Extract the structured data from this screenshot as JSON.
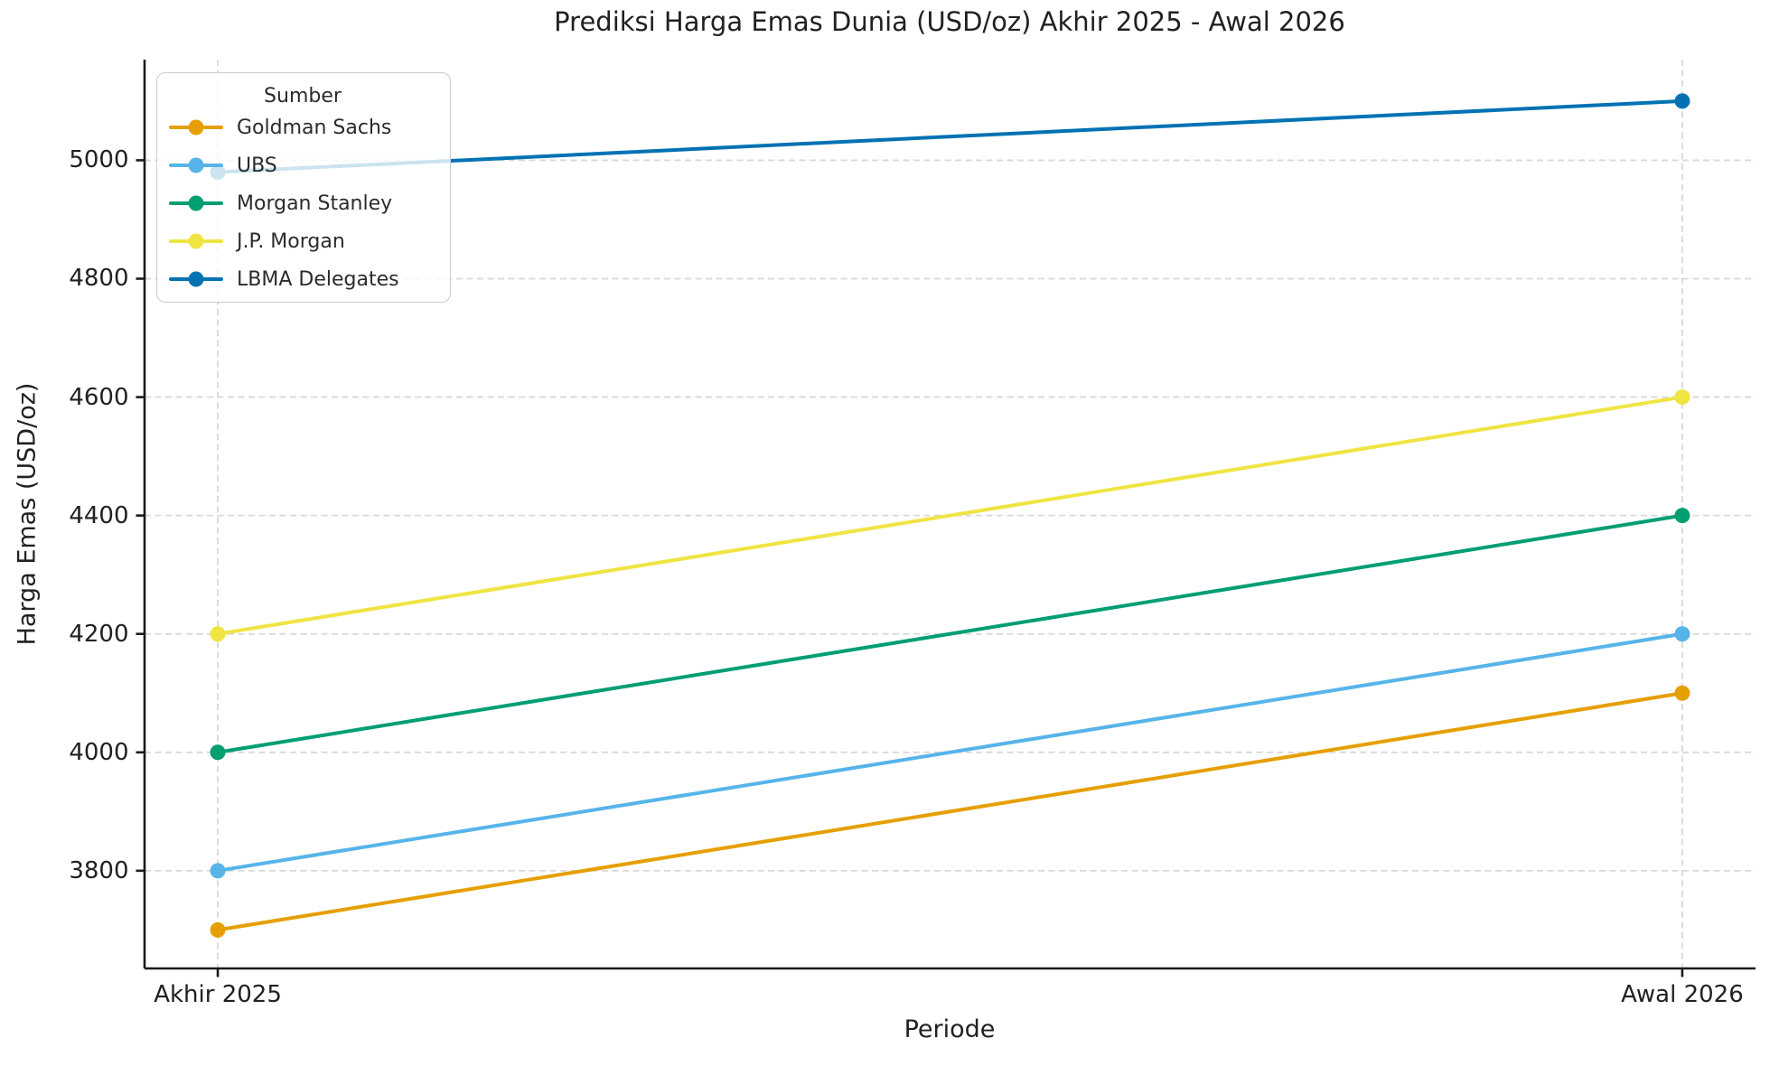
{
  "chart_data": {
    "type": "line",
    "title": "Prediksi Harga Emas Dunia (USD/oz) Akhir 2025 - Awal 2026",
    "xlabel": "Periode",
    "ylabel": "Harga Emas (USD/oz)",
    "categories": [
      "Akhir 2025",
      "Awal 2026"
    ],
    "series": [
      {
        "name": "Goldman Sachs",
        "color": "#E69F00",
        "values": [
          3700,
          4100
        ]
      },
      {
        "name": "UBS",
        "color": "#56B4E9",
        "values": [
          3800,
          4200
        ]
      },
      {
        "name": "Morgan Stanley",
        "color": "#009E73",
        "values": [
          4000,
          4400
        ]
      },
      {
        "name": "J.P. Morgan",
        "color": "#F0E442",
        "values": [
          4200,
          4600
        ]
      },
      {
        "name": "LBMA Delegates",
        "color": "#0072B2",
        "values": [
          4980,
          5100
        ]
      }
    ],
    "legend": {
      "title": "Sumber",
      "position": "upper left"
    },
    "yticks": [
      3800,
      4000,
      4200,
      4400,
      4600,
      4800,
      5000
    ],
    "ylim": [
      3635,
      5170
    ],
    "grid": true,
    "grid_style": "dashed",
    "marker": "circle"
  },
  "style": {
    "grid_color": "#d8d8d8",
    "spine_color": "#1a1a1a",
    "text_color": "#212121",
    "background": "#ffffff"
  }
}
